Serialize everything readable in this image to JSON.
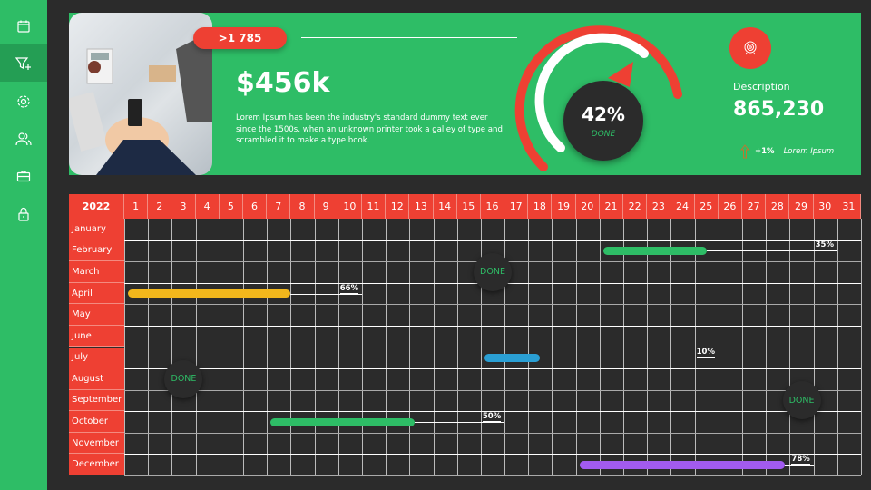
{
  "sidebar": {
    "items": [
      {
        "icon": "calendar-icon",
        "active": false
      },
      {
        "icon": "filter-plus-icon",
        "active": true
      },
      {
        "icon": "gear-icon",
        "active": false
      },
      {
        "icon": "users-icon",
        "active": false
      },
      {
        "icon": "briefcase-icon",
        "active": false
      },
      {
        "icon": "lock-icon",
        "active": false
      }
    ]
  },
  "summary": {
    "badge": ">1 785",
    "amount": "$456k",
    "description": "Lorem Ipsum has been the industry's standard dummy text ever since the 1500s, when an unknown printer took a galley of type and scrambled it to make a type book.",
    "gauge": {
      "percent_label": "42%",
      "percent": 42,
      "status": "DONE"
    },
    "stat": {
      "label": "Description",
      "value": "865,230",
      "trend": "+1%",
      "trend_label": "Lorem Ipsum"
    }
  },
  "colors": {
    "green": "#2ebd66",
    "red": "#ee4033",
    "dark": "#2b2b2b"
  },
  "calendar": {
    "year": "2022",
    "days": [
      "1",
      "2",
      "3",
      "4",
      "5",
      "6",
      "7",
      "8",
      "9",
      "10",
      "11",
      "12",
      "13",
      "14",
      "15",
      "16",
      "17",
      "18",
      "19",
      "20",
      "21",
      "22",
      "23",
      "24",
      "25",
      "26",
      "27",
      "28",
      "29",
      "30",
      "31"
    ],
    "months": [
      "January",
      "February",
      "March",
      "April",
      "May",
      "June",
      "July",
      "August",
      "September",
      "October",
      "November",
      "December"
    ],
    "tasks": [
      {
        "month": 1,
        "start": 21,
        "end": 24.5,
        "label_day": 30,
        "label": "35%",
        "color": "#2ebd66"
      },
      {
        "month": 3,
        "start": 1,
        "end": 7,
        "label_day": 10,
        "label": "66%",
        "color": "#f2b71c"
      },
      {
        "month": 6,
        "start": 16,
        "end": 17.5,
        "label_day": 25,
        "label": "10%",
        "color": "#2a9fd4"
      },
      {
        "month": 9,
        "start": 7,
        "end": 12.2,
        "label_day": 16,
        "label": "50%",
        "color": "#2ebd66"
      },
      {
        "month": 11,
        "start": 20,
        "end": 27.8,
        "label_day": 29,
        "label": "78%",
        "color": "#a25bf0"
      }
    ],
    "done_markers": [
      {
        "month": 2,
        "day": 16,
        "label": "DONE"
      },
      {
        "month": 7,
        "day": 3,
        "label": "DONE"
      },
      {
        "month": 8,
        "day": 29,
        "label": "DONE"
      }
    ]
  }
}
